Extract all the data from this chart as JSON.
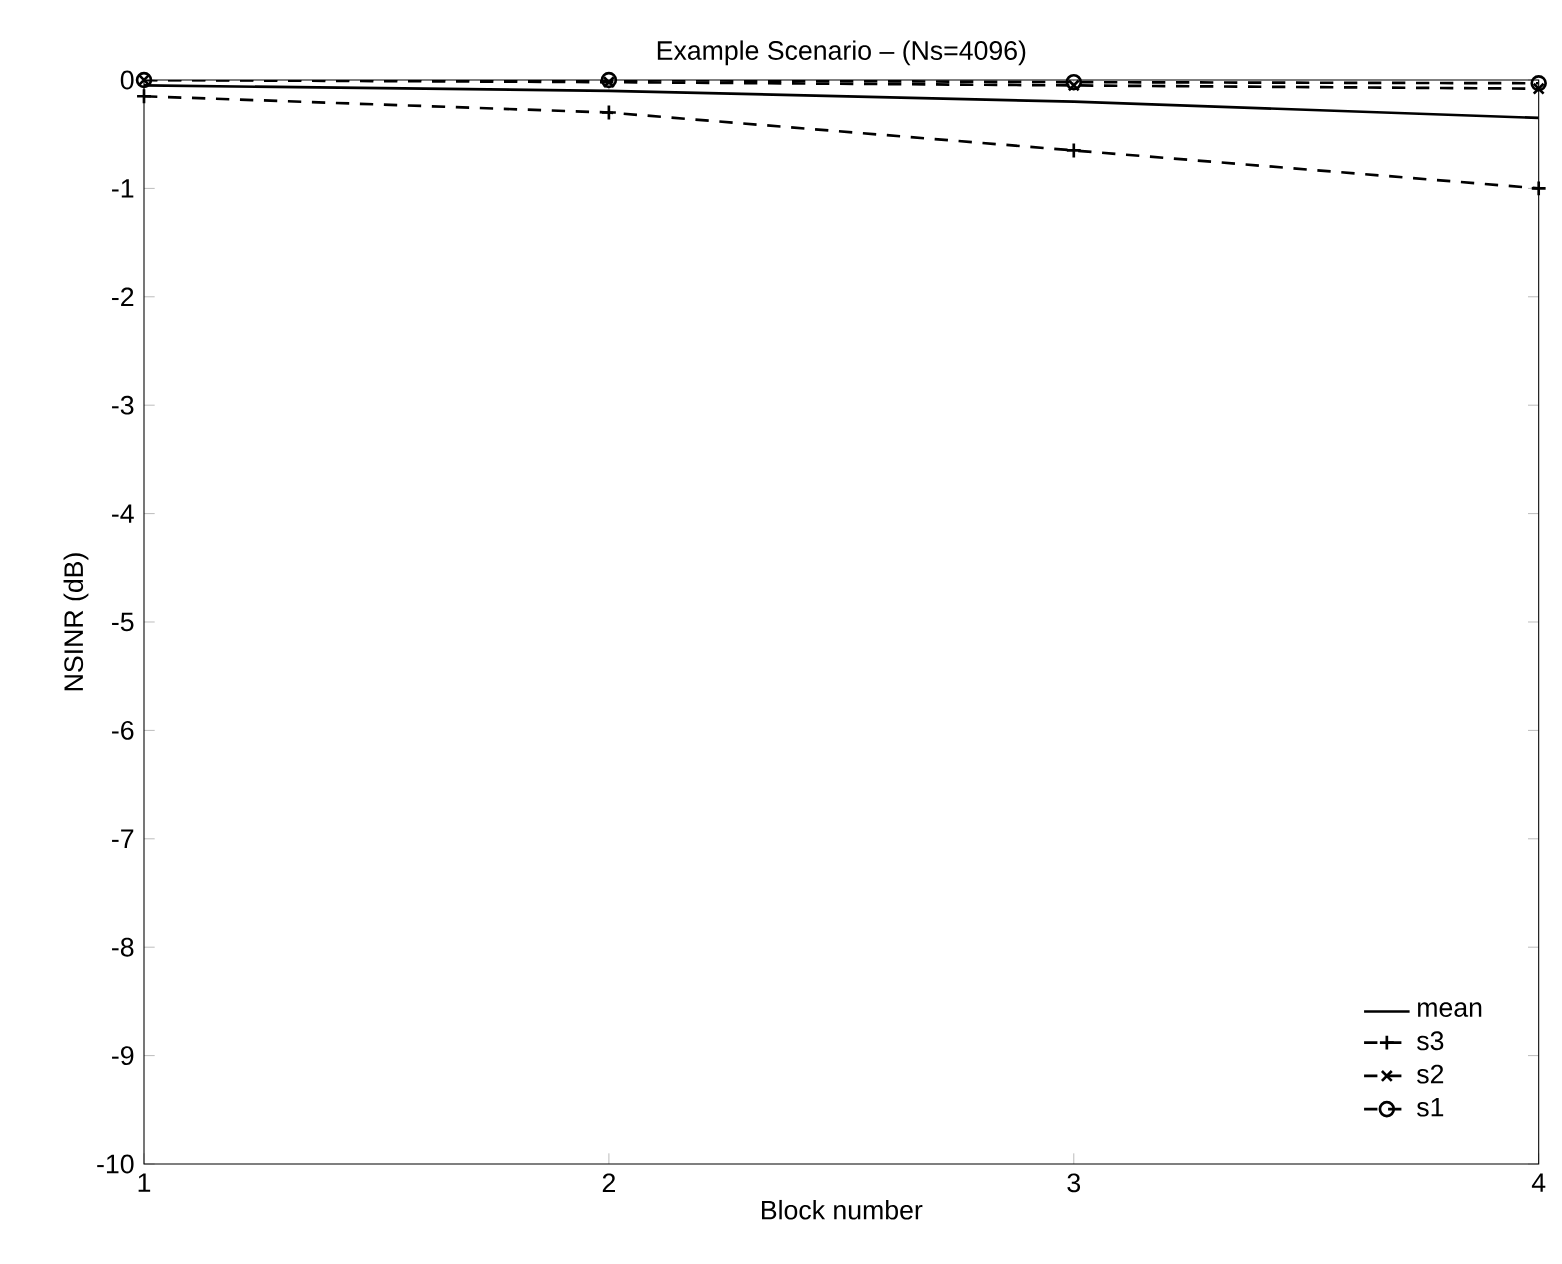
{
  "chart_data": {
    "type": "line",
    "title": "Example Scenario – (Ns=4096)",
    "xlabel": "Block number",
    "ylabel": "NSINR (dB)",
    "x": [
      1,
      2,
      3,
      4
    ],
    "series": [
      {
        "name": "mean",
        "color": "#000000",
        "line_style": "solid",
        "marker": "none",
        "values": [
          -0.05,
          -0.1,
          -0.2,
          -0.35
        ]
      },
      {
        "name": "s3",
        "color": "#000000",
        "line_style": "dashed",
        "marker": "cross",
        "values": [
          -0.15,
          -0.3,
          -0.65,
          -1.0
        ]
      },
      {
        "name": "s2",
        "color": "#000000",
        "line_style": "dashed",
        "marker": "x",
        "values": [
          0,
          -0.02,
          -0.05,
          -0.08
        ]
      },
      {
        "name": "s1",
        "color": "#000000",
        "line_style": "dashed",
        "marker": "circle",
        "values": [
          0,
          0,
          -0.02,
          -0.03
        ]
      }
    ],
    "xlim": [
      1,
      4
    ],
    "ylim": [
      -10,
      0
    ],
    "xticks": [
      1,
      2,
      3,
      4
    ],
    "yticks": [
      -10,
      -9,
      -8,
      -7,
      -6,
      -5,
      -4,
      -3,
      -2,
      -1,
      0
    ],
    "legend": "bottom right"
  }
}
